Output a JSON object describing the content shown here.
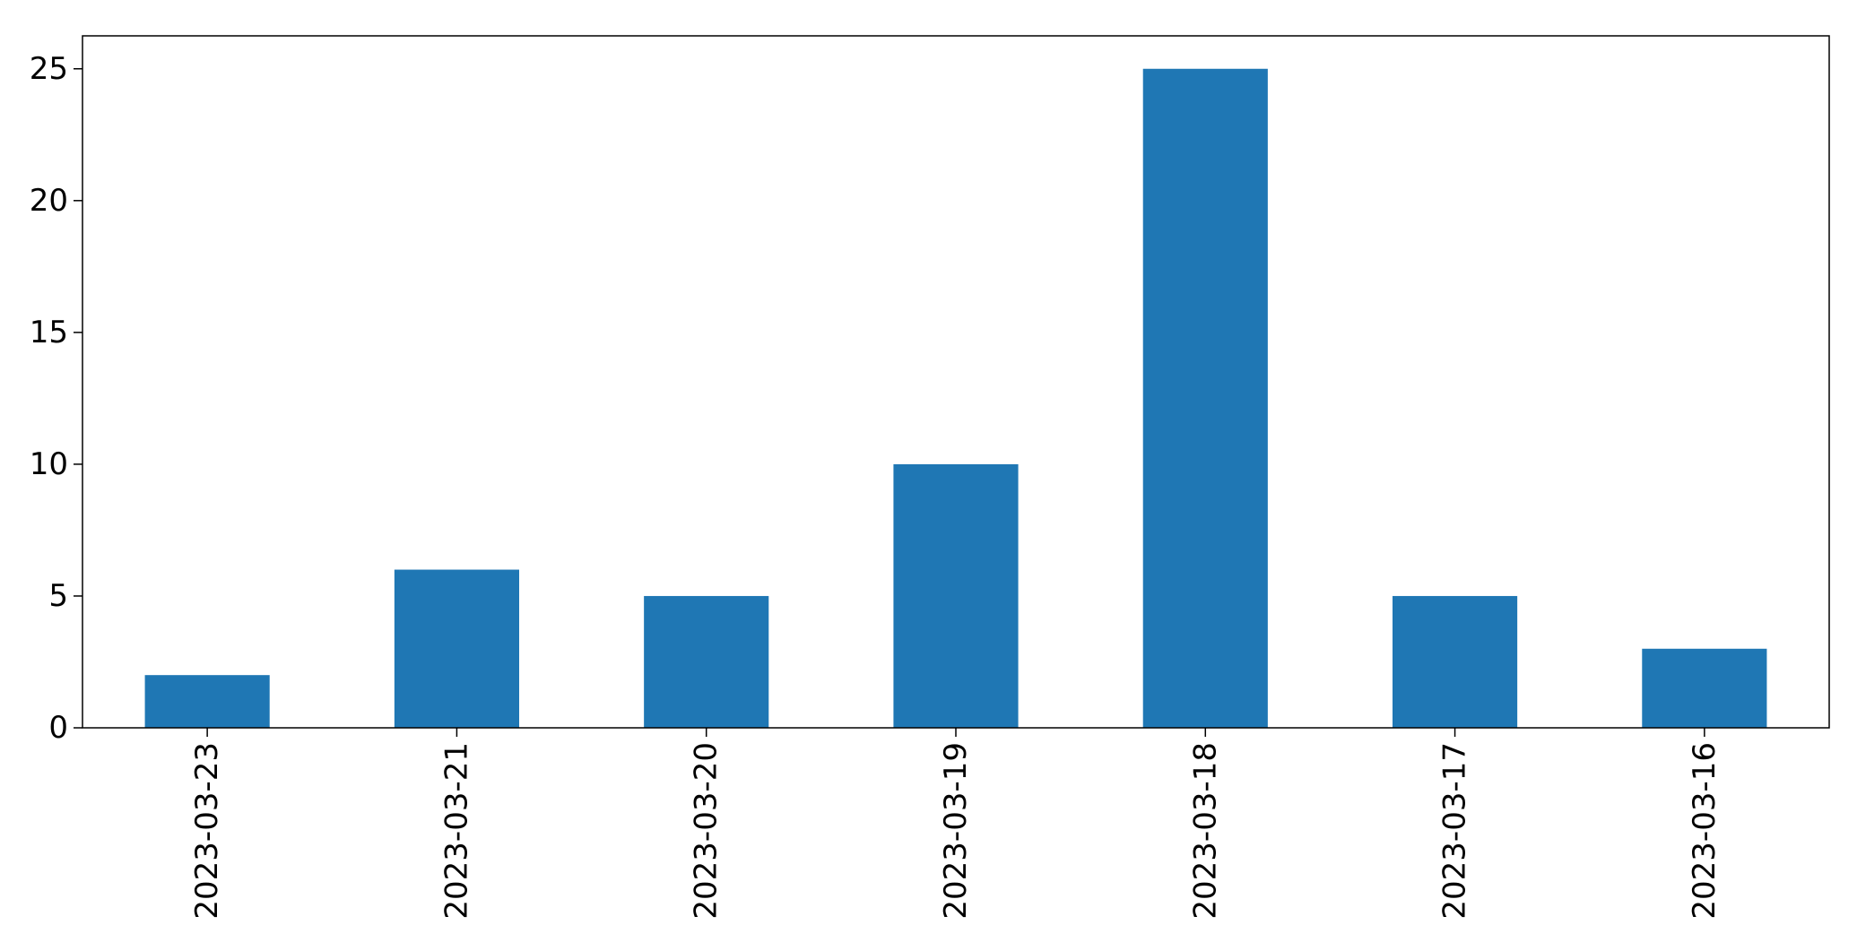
{
  "chart_data": {
    "type": "bar",
    "title": "",
    "xlabel": "",
    "ylabel": "",
    "categories": [
      "2023-03-23",
      "2023-03-21",
      "2023-03-20",
      "2023-03-19",
      "2023-03-18",
      "2023-03-17",
      "2023-03-16"
    ],
    "values": [
      2,
      6,
      5,
      10,
      25,
      5,
      3
    ],
    "ylim": [
      0,
      26.25
    ],
    "yticks": [
      0,
      5,
      10,
      15,
      20,
      25
    ],
    "ytick_labels": [
      "0",
      "5",
      "10",
      "15",
      "20",
      "25"
    ],
    "grid": false,
    "legend": "none",
    "bar_color": "#1f77b4"
  }
}
